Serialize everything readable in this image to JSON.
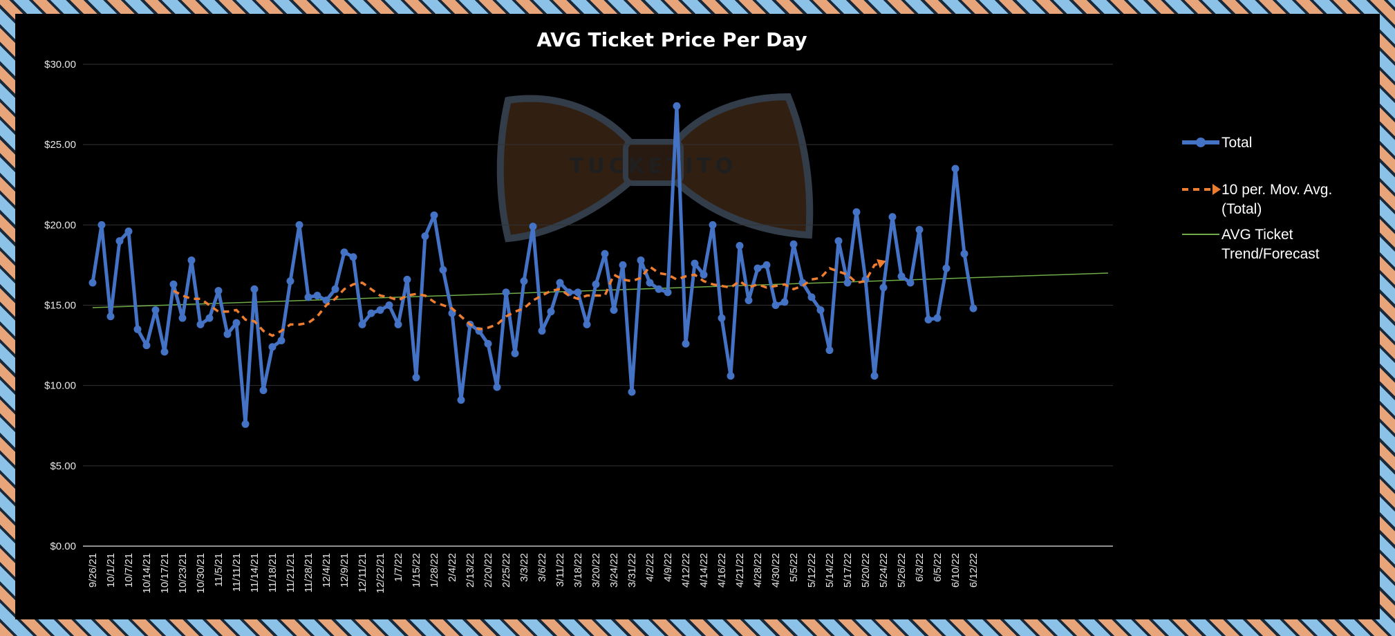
{
  "chart_data": {
    "type": "line",
    "title": "AVG Ticket Price Per Day",
    "xlabel": "",
    "ylabel": "",
    "ylim": [
      0,
      30
    ],
    "yticks": [
      "$0.00",
      "$5.00",
      "$10.00",
      "$15.00",
      "$20.00",
      "$25.00",
      "$30.00"
    ],
    "ytick_values": [
      0,
      5,
      10,
      15,
      20,
      25,
      30
    ],
    "grid": true,
    "legend": "right",
    "watermark": "TUCKETITO",
    "x_tick_labels": [
      "9/26/21",
      "10/1/21",
      "10/7/21",
      "10/14/21",
      "10/17/21",
      "10/23/21",
      "10/30/21",
      "11/5/21",
      "11/11/21",
      "11/14/21",
      "11/18/21",
      "11/21/21",
      "11/28/21",
      "12/4/21",
      "12/9/21",
      "12/11/21",
      "12/22/21",
      "1/7/22",
      "1/15/22",
      "1/28/22",
      "2/4/22",
      "2/13/22",
      "2/20/22",
      "2/25/22",
      "3/3/22",
      "3/6/22",
      "3/11/22",
      "3/18/22",
      "3/20/22",
      "3/24/22",
      "3/31/22",
      "4/2/22",
      "4/9/22",
      "4/12/22",
      "4/14/22",
      "4/16/22",
      "4/21/22",
      "4/28/22",
      "4/30/22",
      "5/5/22",
      "5/12/22",
      "5/14/22",
      "5/17/22",
      "5/20/22",
      "5/24/22",
      "5/26/22",
      "6/3/22",
      "6/5/22",
      "6/10/22",
      "6/12/22"
    ],
    "x_tick_positions": [
      0,
      2,
      4,
      6,
      8,
      10,
      12,
      14,
      16,
      18,
      20,
      22,
      24,
      26,
      28,
      30,
      32,
      34,
      36,
      38,
      40,
      42,
      44,
      46,
      48,
      50,
      52,
      54,
      56,
      58,
      60,
      62,
      64,
      66,
      68,
      70,
      72,
      74,
      76,
      78,
      80,
      82,
      84,
      86,
      88,
      90,
      92,
      94,
      96,
      98
    ],
    "series": [
      {
        "name": "Total",
        "color": "#4472c4",
        "style": "line-marker",
        "values": [
          16.4,
          20.0,
          14.3,
          19.0,
          19.6,
          13.5,
          12.5,
          14.7,
          12.1,
          16.3,
          14.2,
          17.8,
          13.8,
          14.2,
          15.9,
          13.2,
          13.9,
          7.6,
          16.0,
          9.7,
          12.4,
          12.8,
          16.5,
          20.0,
          15.5,
          15.6,
          15.3,
          16.0,
          18.3,
          18.0,
          13.8,
          14.5,
          14.7,
          15.0,
          13.8,
          16.6,
          10.5,
          19.3,
          20.6,
          17.2,
          14.5,
          9.1,
          13.8,
          13.4,
          12.6,
          9.9,
          15.8,
          12.0,
          16.5,
          19.9,
          13.4,
          14.6,
          16.4,
          15.8,
          15.8,
          13.8,
          16.3,
          18.2,
          14.7,
          17.5,
          9.6,
          17.8,
          16.4,
          16.0,
          15.8,
          27.4,
          12.6,
          17.6,
          16.9,
          20.0,
          14.2,
          10.6,
          18.7,
          15.3,
          17.3,
          17.5,
          15.0,
          15.2,
          18.8,
          16.4,
          15.5,
          14.7,
          12.2,
          19.0,
          16.4,
          20.8,
          16.6,
          10.6,
          16.1,
          20.5,
          16.8,
          16.4,
          19.7,
          14.1,
          14.2,
          17.3,
          23.5,
          18.2,
          14.8
        ]
      },
      {
        "name": "10 per. Mov. Avg. (Total)",
        "color": "#ed7d31",
        "style": "dashed-arrow",
        "start_index": 9,
        "values": [
          15.9,
          15.6,
          15.4,
          15.4,
          15.0,
          14.6,
          14.6,
          14.7,
          14.1,
          14.0,
          13.4,
          13.1,
          13.4,
          13.8,
          13.8,
          13.9,
          14.3,
          15.0,
          15.4,
          16.0,
          16.3,
          16.4,
          16.0,
          15.6,
          15.5,
          15.3,
          15.6,
          15.7,
          15.6,
          15.2,
          15.0,
          14.8,
          14.3,
          13.8,
          13.5,
          13.6,
          13.8,
          14.3,
          14.6,
          14.8,
          15.3,
          15.6,
          15.9,
          16.0,
          15.6,
          15.4,
          15.6,
          15.6,
          15.6,
          16.9,
          16.6,
          16.5,
          16.7,
          17.4,
          17.0,
          16.9,
          16.6,
          16.8,
          16.9,
          16.5,
          16.3,
          16.2,
          16.1,
          16.5,
          16.1,
          16.3,
          16.1,
          16.2,
          16.3,
          16.0,
          16.2,
          16.6,
          16.7,
          17.3,
          17.1,
          16.9,
          16.4,
          16.5,
          17.5,
          17.7
        ]
      },
      {
        "name": "AVG Ticket Trend/Forecast",
        "color": "#70ad47",
        "style": "trendline",
        "start": [
          0,
          14.85
        ],
        "end": [
          113,
          17.0
        ]
      }
    ]
  },
  "legend": {
    "total_label": "Total",
    "mov_avg_line1": "10 per. Mov. Avg.",
    "mov_avg_line2": "(Total)",
    "trend_line1": "AVG Ticket",
    "trend_line2": "Trend/Forecast"
  }
}
